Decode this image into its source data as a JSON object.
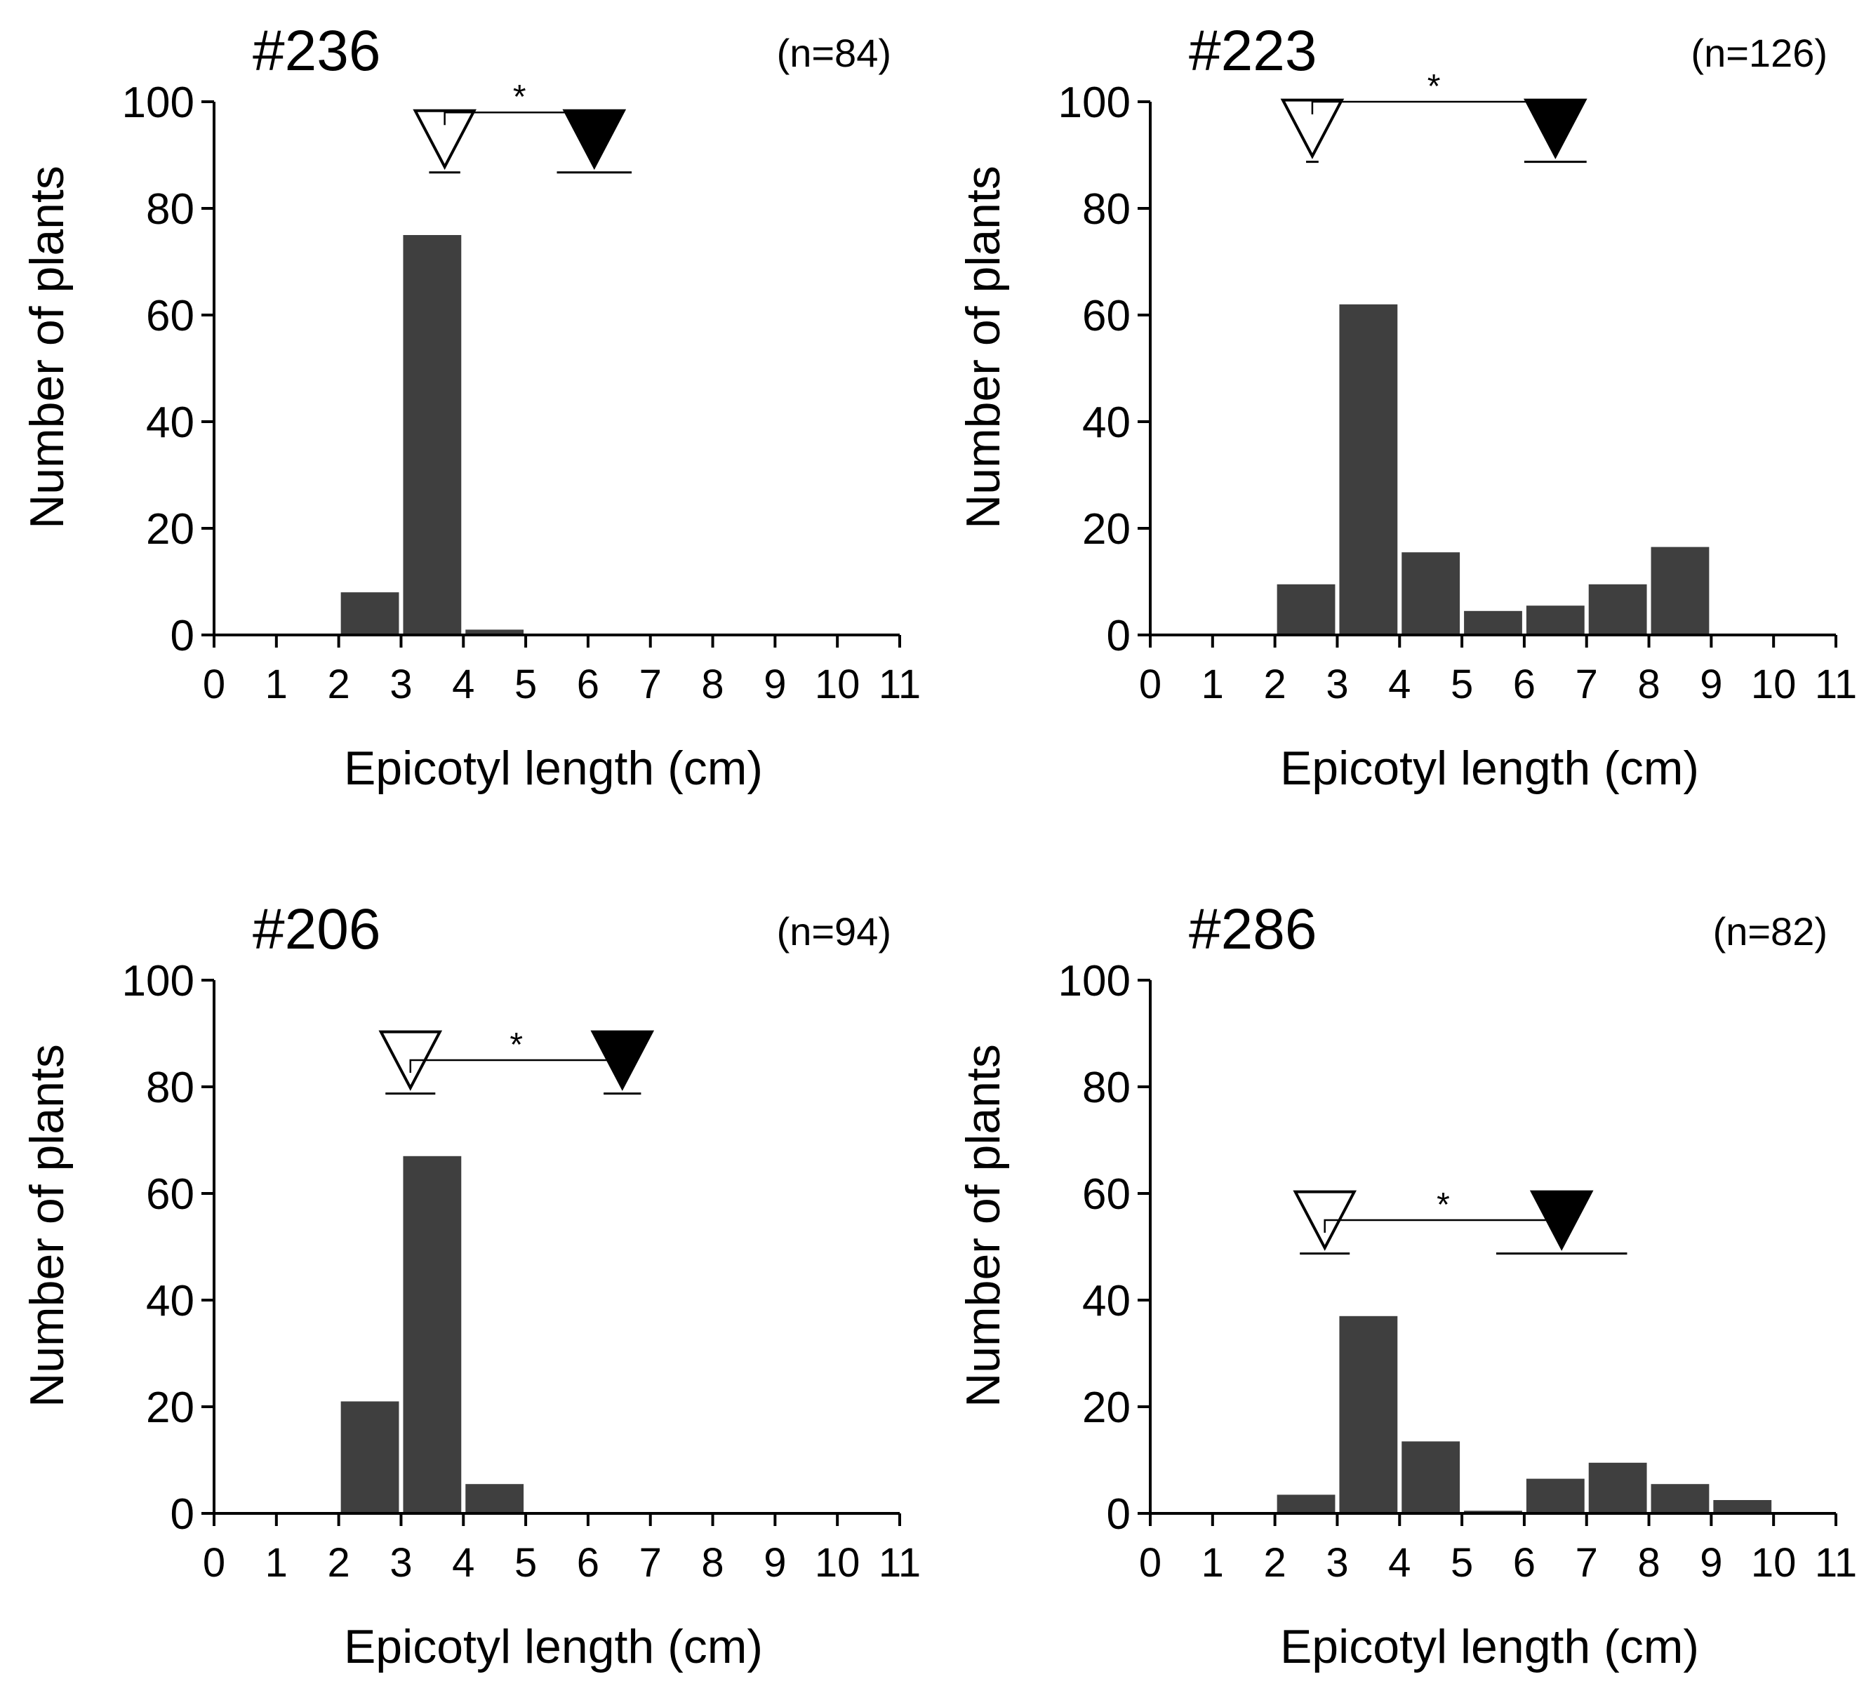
{
  "chart_data": [
    {
      "type": "bar",
      "title": "#236",
      "n_label": "(n=84)",
      "xlabel": "Epicotyl length (cm)",
      "ylabel": "Number of plants",
      "xlim": [
        0,
        11
      ],
      "ylim": [
        0,
        100
      ],
      "xticks": [
        "0",
        "1",
        "2",
        "3",
        "4",
        "5",
        "6",
        "7",
        "8",
        "9",
        "10",
        "11"
      ],
      "yticks": [
        "0",
        "20",
        "40",
        "60",
        "80",
        "100"
      ],
      "bins": [
        [
          2,
          3
        ],
        [
          3,
          4
        ],
        [
          4,
          5
        ]
      ],
      "values": [
        8,
        75,
        1
      ],
      "bar_color": "#3f3f3f",
      "open_marker": {
        "mean": 3.7,
        "sd": 0.25,
        "y": 87
      },
      "filled_marker": {
        "mean": 6.1,
        "sd": 0.6,
        "y": 87
      },
      "significance": {
        "label": "*",
        "y": 98
      }
    },
    {
      "type": "bar",
      "title": "#223",
      "n_label": "(n=126)",
      "xlabel": "Epicotyl length (cm)",
      "ylabel": "Number of plants",
      "xlim": [
        0,
        11
      ],
      "ylim": [
        0,
        100
      ],
      "xticks": [
        "0",
        "1",
        "2",
        "3",
        "4",
        "5",
        "6",
        "7",
        "8",
        "9",
        "10",
        "11"
      ],
      "yticks": [
        "0",
        "20",
        "40",
        "60",
        "80",
        "100"
      ],
      "bins": [
        [
          2,
          3
        ],
        [
          3,
          4
        ],
        [
          4,
          5
        ],
        [
          5,
          6
        ],
        [
          6,
          7
        ],
        [
          7,
          8
        ],
        [
          8,
          9
        ]
      ],
      "values": [
        9.5,
        62,
        15.5,
        4.5,
        5.5,
        9.5,
        16.5
      ],
      "bar_color": "#3f3f3f",
      "open_marker": {
        "mean": 2.6,
        "sd": 0.1,
        "y": 89
      },
      "filled_marker": {
        "mean": 6.5,
        "sd": 0.5,
        "y": 89
      },
      "significance": {
        "label": "*",
        "y": 100
      }
    },
    {
      "type": "bar",
      "title": "#206",
      "n_label": "(n=94)",
      "xlabel": "Epicotyl length (cm)",
      "ylabel": "Number of plants",
      "xlim": [
        0,
        11
      ],
      "ylim": [
        0,
        100
      ],
      "xticks": [
        "0",
        "1",
        "2",
        "3",
        "4",
        "5",
        "6",
        "7",
        "8",
        "9",
        "10",
        "11"
      ],
      "yticks": [
        "0",
        "20",
        "40",
        "60",
        "80",
        "100"
      ],
      "bins": [
        [
          2,
          3
        ],
        [
          3,
          4
        ],
        [
          4,
          5
        ]
      ],
      "values": [
        21,
        67,
        5.5
      ],
      "bar_color": "#3f3f3f",
      "open_marker": {
        "mean": 3.15,
        "sd": 0.4,
        "y": 79
      },
      "filled_marker": {
        "mean": 6.55,
        "sd": 0.3,
        "y": 79
      },
      "significance": {
        "label": "*",
        "y": 85
      }
    },
    {
      "type": "bar",
      "title": "#286",
      "n_label": "(n=82)",
      "xlabel": "Epicotyl length (cm)",
      "ylabel": "Number of plants",
      "xlim": [
        0,
        11
      ],
      "ylim": [
        0,
        100
      ],
      "xticks": [
        "0",
        "1",
        "2",
        "3",
        "4",
        "5",
        "6",
        "7",
        "8",
        "9",
        "10",
        "11"
      ],
      "yticks": [
        "0",
        "20",
        "40",
        "60",
        "80",
        "100"
      ],
      "bins": [
        [
          2,
          3
        ],
        [
          3,
          4
        ],
        [
          4,
          5
        ],
        [
          5,
          6
        ],
        [
          6,
          7
        ],
        [
          7,
          8
        ],
        [
          8,
          9
        ],
        [
          9,
          10
        ]
      ],
      "values": [
        3.5,
        37,
        13.5,
        0.5,
        6.5,
        9.5,
        5.5,
        2.5
      ],
      "bar_color": "#3f3f3f",
      "open_marker": {
        "mean": 2.8,
        "sd": 0.4,
        "y": 49
      },
      "filled_marker": {
        "mean": 6.6,
        "sd": 1.05,
        "y": 49
      },
      "significance": {
        "label": "*",
        "y": 55
      }
    }
  ]
}
